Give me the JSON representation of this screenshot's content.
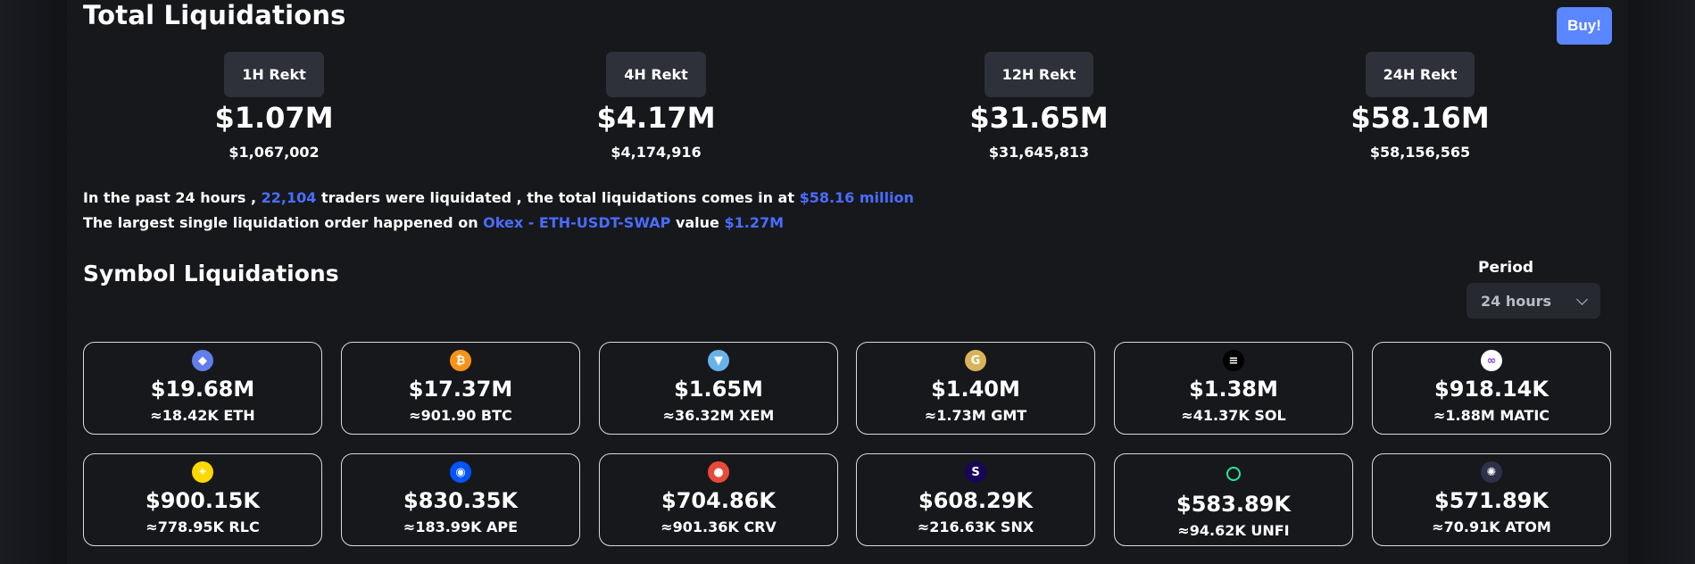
{
  "header": {
    "title": "Total Liquidations",
    "buy_label": "Buy!"
  },
  "rekt": [
    {
      "label": "1H Rekt",
      "value": "$1.07M",
      "exact": "$1,067,002"
    },
    {
      "label": "4H Rekt",
      "value": "$4.17M",
      "exact": "$4,174,916"
    },
    {
      "label": "12H Rekt",
      "value": "$31.65M",
      "exact": "$31,645,813"
    },
    {
      "label": "24H Rekt",
      "value": "$58.16M",
      "exact": "$58,156,565"
    }
  ],
  "summary": {
    "line1_a": "In the past 24 hours ,",
    "traders": "22,104",
    "line1_b": "traders were liquidated , the total liquidations comes in at",
    "total": "$58.16 million",
    "line2_a": "The largest single liquidation order happened on",
    "exchange": "Okex - ETH-USDT-SWAP",
    "line2_b": "value",
    "largest": "$1.27M"
  },
  "symbols": {
    "title": "Symbol Liquidations",
    "period_label": "Period",
    "period_value": "24 hours",
    "cards": [
      {
        "value": "$19.68M",
        "amount": "≈18.42K ETH",
        "icon": "eth-icon",
        "color": "#627eea",
        "glyph": "◆"
      },
      {
        "value": "$17.37M",
        "amount": "≈901.90 BTC",
        "icon": "btc-icon",
        "color": "#f7931a",
        "glyph": "₿"
      },
      {
        "value": "$1.65M",
        "amount": "≈36.32M XEM",
        "icon": "xem-icon",
        "color": "#67b2e8",
        "glyph": "▼"
      },
      {
        "value": "$1.40M",
        "amount": "≈1.73M GMT",
        "icon": "gmt-icon",
        "color": "#d8b35a",
        "glyph": "G"
      },
      {
        "value": "$1.38M",
        "amount": "≈41.37K SOL",
        "icon": "sol-icon",
        "color": "#000000",
        "glyph": "≡"
      },
      {
        "value": "$918.14K",
        "amount": "≈1.88M MATIC",
        "icon": "matic-icon",
        "color": "#ffffff",
        "glyph": "∞"
      },
      {
        "value": "$900.15K",
        "amount": "≈778.95K RLC",
        "icon": "rlc-icon",
        "color": "#ffd800",
        "glyph": "✦"
      },
      {
        "value": "$830.35K",
        "amount": "≈183.99K APE",
        "icon": "ape-icon",
        "color": "#0054f9",
        "glyph": "◉"
      },
      {
        "value": "$704.86K",
        "amount": "≈901.36K CRV",
        "icon": "crv-icon",
        "color": "#e84a3a",
        "glyph": "●"
      },
      {
        "value": "$608.29K",
        "amount": "≈216.63K SNX",
        "icon": "snx-icon",
        "color": "#170659",
        "glyph": "S"
      },
      {
        "value": "$583.89K",
        "amount": "≈94.62K UNFI",
        "icon": "unfi-icon",
        "color": "#17181b",
        "glyph": "○"
      },
      {
        "value": "$571.89K",
        "amount": "≈70.91K ATOM",
        "icon": "atom-icon",
        "color": "#2e3148",
        "glyph": "✺"
      }
    ]
  }
}
